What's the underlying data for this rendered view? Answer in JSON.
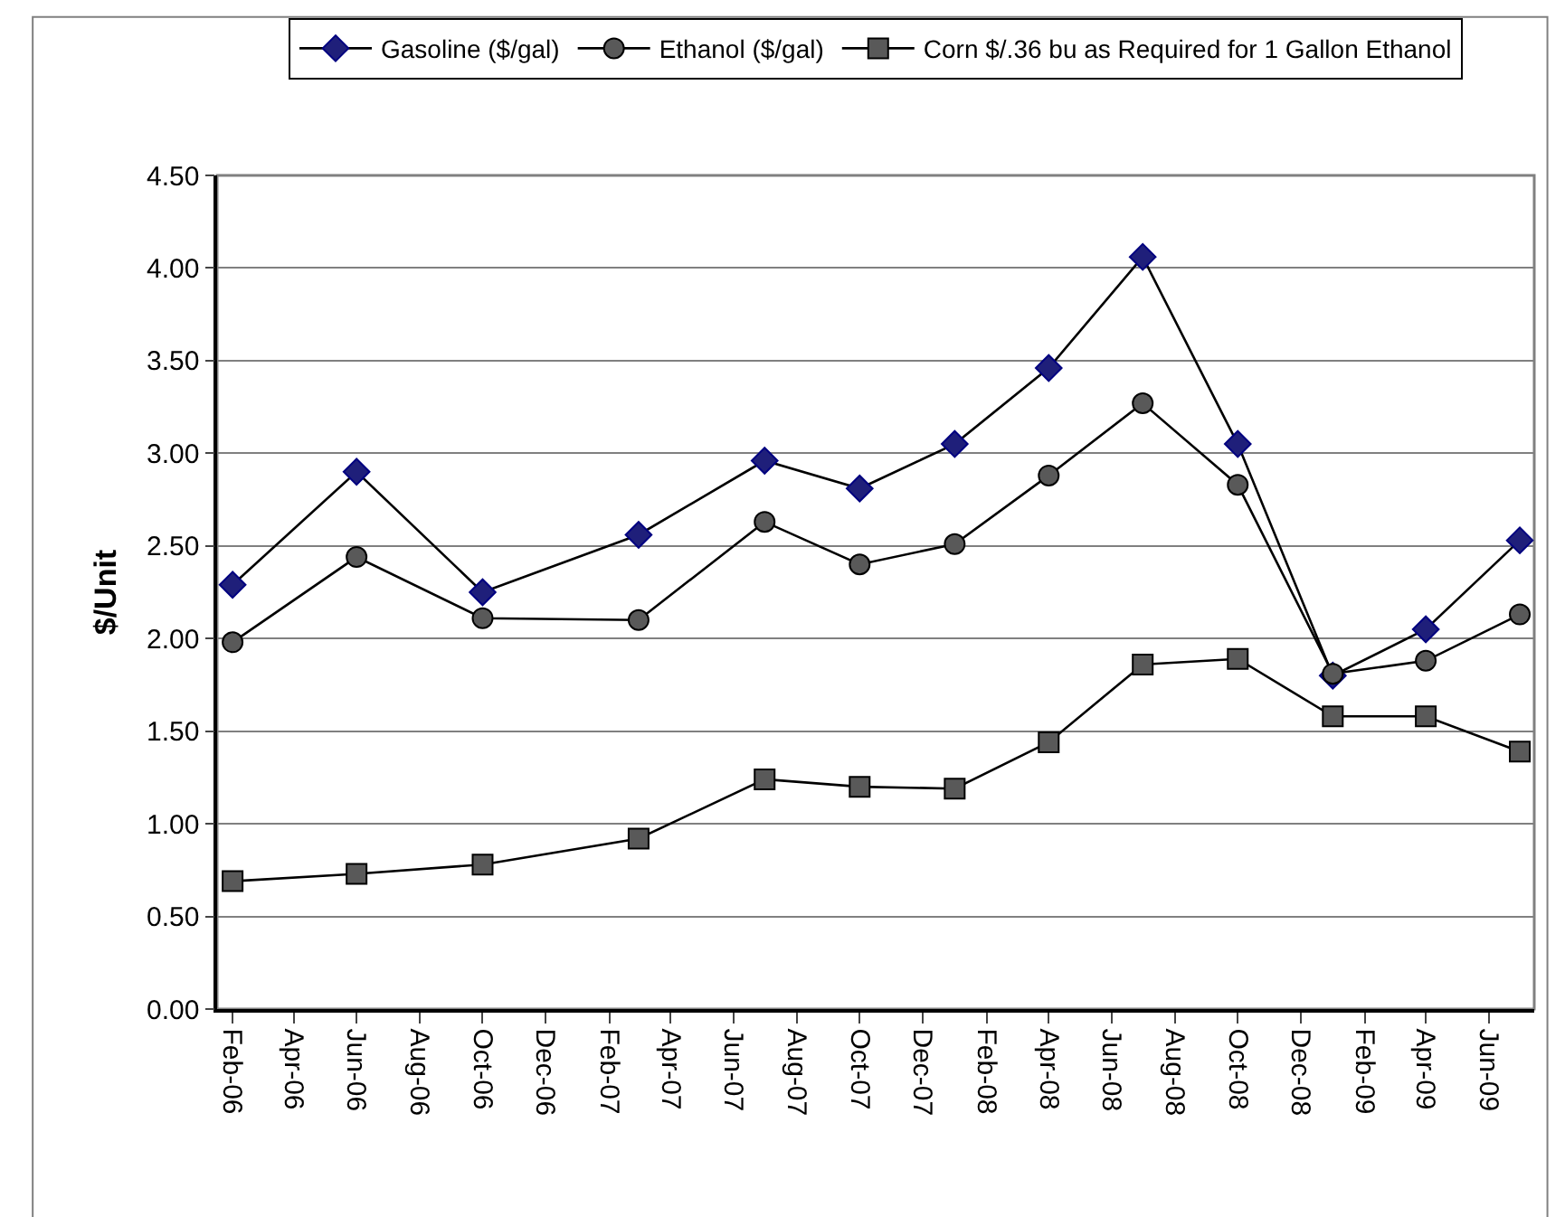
{
  "chart_data": {
    "type": "line",
    "ylabel": "$/Unit",
    "x": [
      "2006-02",
      "2006-06",
      "2006-10",
      "2007-03",
      "2007-07",
      "2007-10",
      "2008-01",
      "2008-04",
      "2008-07",
      "2008-10",
      "2009-01",
      "2009-04",
      "2009-07"
    ],
    "series": [
      {
        "name": "Gasoline ($/gal)",
        "color": "#1f1f7a",
        "marker": "diamond",
        "values": [
          2.29,
          2.9,
          2.25,
          2.56,
          2.96,
          2.81,
          3.05,
          3.46,
          4.06,
          3.05,
          1.8,
          2.05,
          2.53
        ]
      },
      {
        "name": "Ethanol ($/gal)",
        "color": "#595959",
        "marker": "circle",
        "values": [
          1.98,
          2.44,
          2.11,
          2.1,
          2.63,
          2.4,
          2.51,
          2.88,
          3.27,
          2.83,
          1.81,
          1.88,
          2.13
        ]
      },
      {
        "name": "Corn $/.36 bu as Required for 1 Gallon Ethanol",
        "color": "#595959",
        "marker": "square",
        "values": [
          0.69,
          0.73,
          0.78,
          0.92,
          1.24,
          1.2,
          1.19,
          1.44,
          1.86,
          1.89,
          1.58,
          1.58,
          1.39
        ]
      }
    ],
    "xlim": [
      "2006-01-17",
      "2009-07-15"
    ],
    "xticks": [
      {
        "value": "2006-02",
        "label": "Feb-06"
      },
      {
        "value": "2006-04",
        "label": "Apr-06"
      },
      {
        "value": "2006-06",
        "label": "Jun-06"
      },
      {
        "value": "2006-08",
        "label": "Aug-06"
      },
      {
        "value": "2006-10",
        "label": "Oct-06"
      },
      {
        "value": "2006-12",
        "label": "Dec-06"
      },
      {
        "value": "2007-02",
        "label": "Feb-07"
      },
      {
        "value": "2007-04",
        "label": "Apr-07"
      },
      {
        "value": "2007-06",
        "label": "Jun-07"
      },
      {
        "value": "2007-08",
        "label": "Aug-07"
      },
      {
        "value": "2007-10",
        "label": "Oct-07"
      },
      {
        "value": "2007-12",
        "label": "Dec-07"
      },
      {
        "value": "2008-02",
        "label": "Feb-08"
      },
      {
        "value": "2008-04",
        "label": "Apr-08"
      },
      {
        "value": "2008-06",
        "label": "Jun-08"
      },
      {
        "value": "2008-08",
        "label": "Aug-08"
      },
      {
        "value": "2008-10",
        "label": "Oct-08"
      },
      {
        "value": "2008-12",
        "label": "Dec-08"
      },
      {
        "value": "2009-02",
        "label": "Feb-09"
      },
      {
        "value": "2009-04",
        "label": "Apr-09"
      },
      {
        "value": "2009-06",
        "label": "Jun-09"
      }
    ],
    "ylim": [
      0,
      4.5
    ],
    "yticks": [
      {
        "value": 0,
        "label": "0.00"
      },
      {
        "value": 0.5,
        "label": "0.50"
      },
      {
        "value": 1,
        "label": "1.00"
      },
      {
        "value": 1.5,
        "label": "1.50"
      },
      {
        "value": 2,
        "label": "2.00"
      },
      {
        "value": 2.5,
        "label": "2.50"
      },
      {
        "value": 3,
        "label": "3.00"
      },
      {
        "value": 3.5,
        "label": "3.50"
      },
      {
        "value": 4,
        "label": "4.00"
      },
      {
        "value": 4.5,
        "label": "4.50"
      }
    ],
    "grid": "y",
    "legend": "top",
    "line_style": "solid"
  }
}
